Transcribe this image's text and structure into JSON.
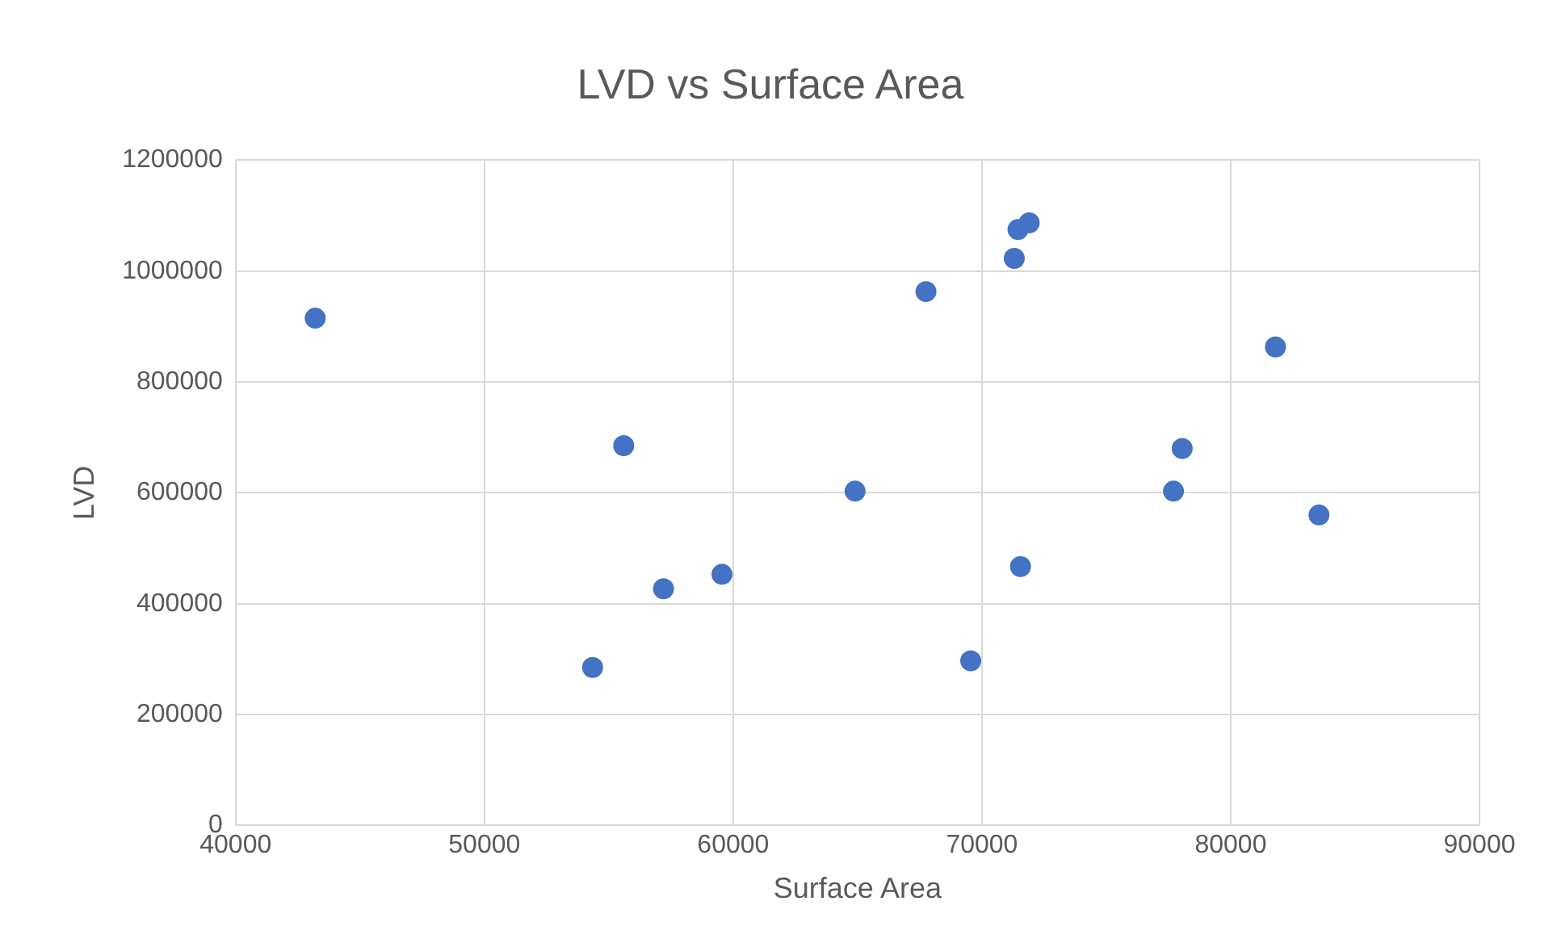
{
  "chart_data": {
    "type": "scatter",
    "title": "LVD vs Surface Area",
    "xlabel": "Surface Area",
    "ylabel": "LVD",
    "x": [
      43200,
      54350,
      55600,
      57200,
      59550,
      64900,
      67750,
      69550,
      71300,
      71450,
      71900,
      71550,
      77700,
      78050,
      81800,
      83550
    ],
    "series": [
      {
        "color": "#4472c4",
        "values": [
          915000,
          285000,
          685000,
          427000,
          453000,
          603000,
          963000,
          297000,
          1023000,
          1075000,
          1087000,
          467000,
          603000,
          680000,
          863000,
          560000
        ]
      }
    ],
    "xlim": [
      40000,
      90000
    ],
    "xticks": [
      40000,
      50000,
      60000,
      70000,
      80000,
      90000
    ],
    "ylim": [
      0,
      1200000
    ],
    "yticks": [
      0,
      200000,
      400000,
      600000,
      800000,
      1000000,
      1200000
    ],
    "grid": true,
    "marker": "circle",
    "legend": false
  }
}
